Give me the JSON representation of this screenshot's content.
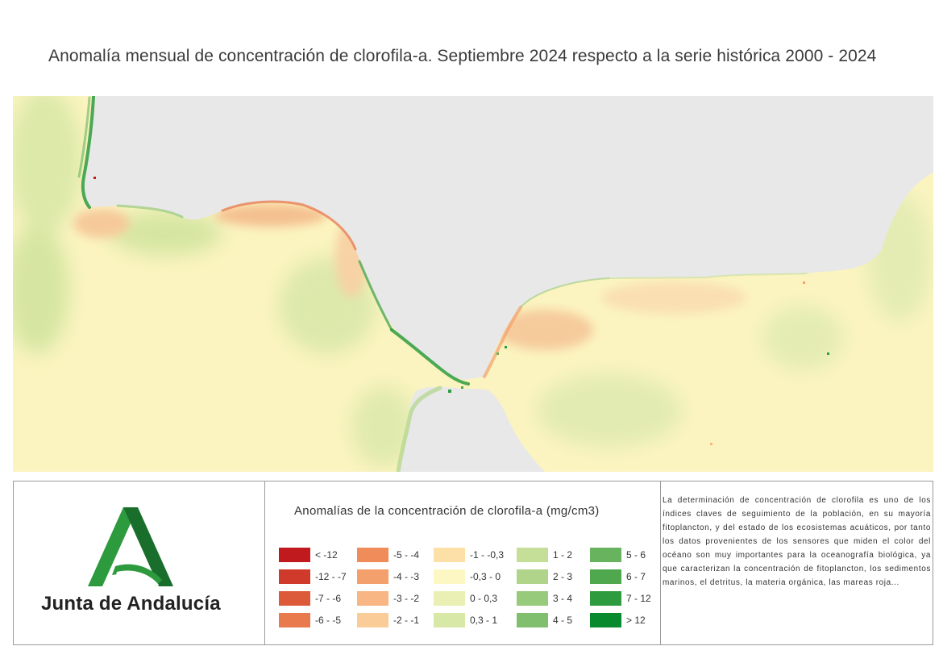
{
  "title": "Anomalía mensual de concentración de clorofila-a. Septiembre 2024 respecto a la serie histórica 2000 - 2024",
  "map": {
    "land_color": "#e9e9e9",
    "sea_base_color": "#fbf4c0"
  },
  "logo": {
    "text": "Junta de Andalucía",
    "icon": "junta-andalucia-emblem",
    "color_light": "#2e9a3e",
    "color_dark": "#1a6e2b"
  },
  "legend": {
    "title": "Anomalías de la concentración de clorofila-a (mg/cm3)",
    "columns": [
      [
        {
          "label": "< -12",
          "color": "#c0191e"
        },
        {
          "label": "-12 - -7",
          "color": "#d03a2a"
        },
        {
          "label": "-7 - -6",
          "color": "#dc5a3a"
        },
        {
          "label": "-6 - -5",
          "color": "#e87a4e"
        }
      ],
      [
        {
          "label": "-5 - -4",
          "color": "#ef8c5a"
        },
        {
          "label": "-4 - -3",
          "color": "#f4a06c"
        },
        {
          "label": "-3 - -2",
          "color": "#f7b683"
        },
        {
          "label": "-2 - -1",
          "color": "#facc98"
        }
      ],
      [
        {
          "label": "-1 - -0,3",
          "color": "#fde0a8"
        },
        {
          "label": "-0,3 - 0",
          "color": "#fdf7c4"
        },
        {
          "label": "0 - 0,3",
          "color": "#eaf0b4"
        },
        {
          "label": "0,3 - 1",
          "color": "#d8e8a6"
        }
      ],
      [
        {
          "label": "1 - 2",
          "color": "#c6df98"
        },
        {
          "label": "2 - 3",
          "color": "#b0d58a"
        },
        {
          "label": "3 - 4",
          "color": "#98ca7c"
        },
        {
          "label": "4 - 5",
          "color": "#80bf6e"
        }
      ],
      [
        {
          "label": "5 - 6",
          "color": "#68b35e"
        },
        {
          "label": "6 - 7",
          "color": "#4fa84e"
        },
        {
          "label": "7 - 12",
          "color": "#2e9c3e"
        },
        {
          "label": "> 12",
          "color": "#0a8a2e"
        }
      ]
    ]
  },
  "description": "La determinación de concentración de clorofila es uno de los índices claves de seguimiento de la población, en su mayoría fitoplancton, y del estado de los ecosistemas acuáticos, por tanto los datos provenientes de los sensores que miden el color del océano son muy importantes para la oceanografía biológica, ya que caracterizan la concentración de fitoplancton, los sedimentos marinos, el detritus, la materia orgánica, las mareas roja..."
}
